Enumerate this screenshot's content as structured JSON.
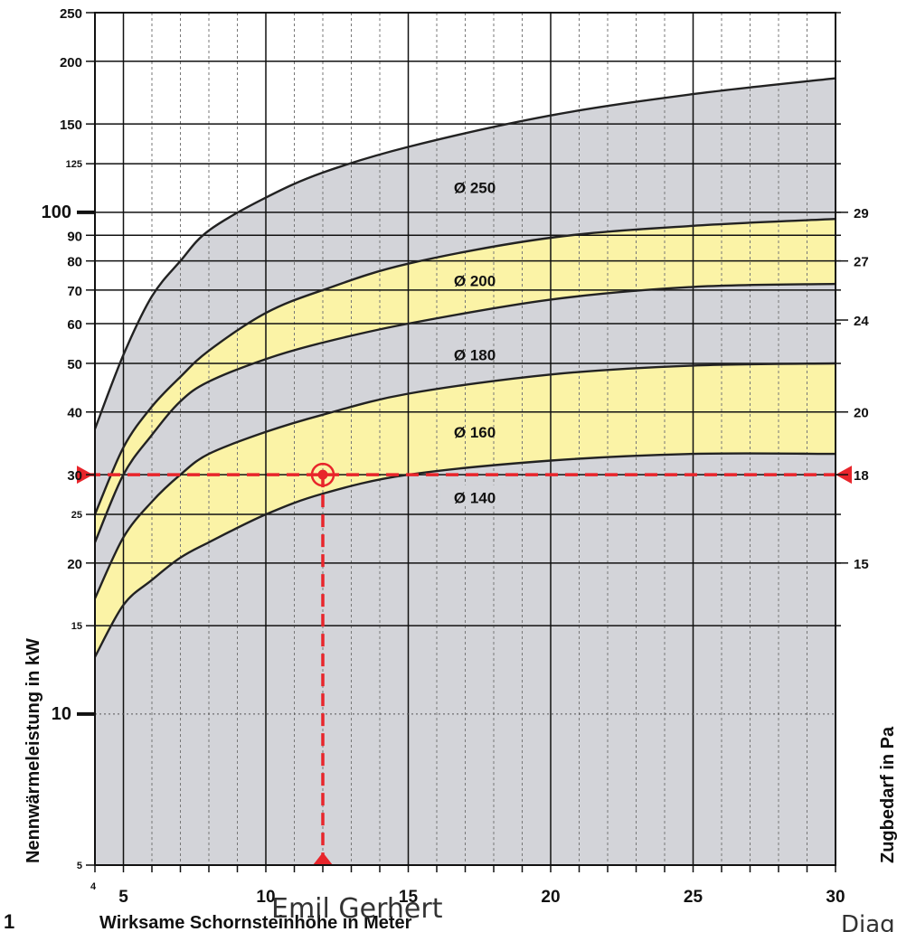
{
  "chart_data": {
    "type": "line",
    "xlabel": "Wirksame Schornsteinhöhe in Meter",
    "ylabel": "Nennwärmeleistung in kW",
    "ylabel_right": "Zugbedarf in Pa",
    "xlim": [
      4,
      30
    ],
    "ylim": [
      5,
      250
    ],
    "y_scale": "log",
    "x_ticks": [
      "4",
      "5",
      "10",
      "15",
      "20",
      "25",
      "30"
    ],
    "y_ticks": [
      "5",
      "10",
      "15",
      "20",
      "25",
      "30",
      "40",
      "50",
      "60",
      "70",
      "80",
      "90",
      "100",
      "125",
      "150",
      "200",
      "250"
    ],
    "right_ticks": [
      {
        "label": "29",
        "kw": 100
      },
      {
        "label": "27",
        "kw": 80
      },
      {
        "label": "24",
        "kw": 61
      },
      {
        "label": "20",
        "kw": 40
      },
      {
        "label": "18",
        "kw": 30
      },
      {
        "label": "15",
        "kw": 20
      }
    ],
    "series": [
      {
        "name": "Ø 250",
        "x": [
          4,
          5,
          6,
          7,
          8,
          10,
          12,
          15,
          20,
          25,
          30
        ],
        "y": [
          37,
          52,
          68,
          80,
          92,
          107,
          120,
          135,
          156,
          172,
          185
        ]
      },
      {
        "name": "Ø 200",
        "x": [
          4,
          5,
          6,
          7,
          8,
          10,
          12,
          15,
          20,
          25,
          30
        ],
        "y": [
          25,
          34,
          41,
          47,
          53,
          63,
          70,
          79,
          89,
          94,
          97
        ]
      },
      {
        "name": "Ø 180",
        "x": [
          4,
          5,
          6,
          7,
          8,
          10,
          12,
          15,
          20,
          25,
          30
        ],
        "y": [
          22,
          30,
          36,
          42,
          46,
          51,
          55,
          60,
          67,
          71,
          72
        ]
      },
      {
        "name": "Ø 160",
        "x": [
          4,
          5,
          6,
          7,
          8,
          10,
          12,
          15,
          20,
          25,
          30
        ],
        "y": [
          17,
          22.5,
          26.5,
          30,
          33,
          36.5,
          39.5,
          43.5,
          47.5,
          49.5,
          50
        ]
      },
      {
        "name": "Ø 140",
        "x": [
          4,
          5,
          6,
          7,
          8,
          10,
          12,
          15,
          20,
          25,
          30
        ],
        "y": [
          13,
          16.5,
          18.5,
          20.5,
          22,
          25,
          27.5,
          30,
          32,
          33,
          33
        ]
      }
    ],
    "bands": [
      {
        "upper": "Ø 200",
        "lower": "Ø 180",
        "color": "#fbf3a6"
      },
      {
        "upper": "Ø 160",
        "lower": "Ø 140",
        "color": "#fbf3a6"
      }
    ],
    "labels": [
      {
        "text": "Ø 250",
        "x": 16.6,
        "y": 112
      },
      {
        "text": "Ø 200",
        "x": 16.6,
        "y": 73
      },
      {
        "text": "Ø 180",
        "x": 16.6,
        "y": 52
      },
      {
        "text": "Ø 160",
        "x": 16.6,
        "y": 36.5
      },
      {
        "text": "Ø 140",
        "x": 16.6,
        "y": 27
      }
    ],
    "dotted_reference_y": 10,
    "marker": {
      "x": 12,
      "y": 30,
      "color": "#e8252b"
    },
    "colors": {
      "envelope": "#d3d4d9",
      "band": "#fbf3a6",
      "grid": "#111111",
      "marker": "#e8252b"
    }
  },
  "figure_number": "1",
  "watermark": "Emil Gerhert",
  "corner_text": "Diag"
}
